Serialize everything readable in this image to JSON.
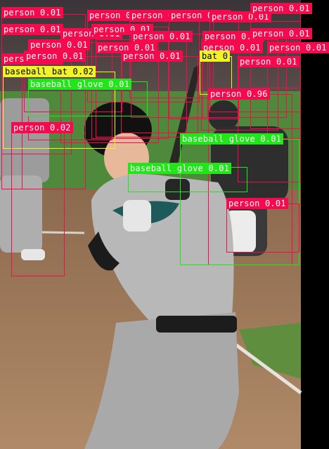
{
  "colors": {
    "person": "#f50a4d",
    "baseball_bat": "#f2f22a",
    "baseball_glove": "#23e61a",
    "background_box": "#000000"
  },
  "detections": [
    {
      "label": "person 0.01",
      "class": "person"
    },
    {
      "label": "person 0.01",
      "class": "person"
    },
    {
      "label": "person 0.01",
      "class": "person"
    },
    {
      "label": "person 0.01",
      "class": "person"
    },
    {
      "label": "person 0.01",
      "class": "person"
    },
    {
      "label": "person 0.01",
      "class": "person"
    },
    {
      "label": "person 0.01",
      "class": "person"
    },
    {
      "label": "person 0.01",
      "class": "person"
    },
    {
      "label": "person 0.01",
      "class": "person"
    },
    {
      "label": "person 0.01",
      "class": "person"
    },
    {
      "label": "person 0.01",
      "class": "person"
    },
    {
      "label": "person 0.01",
      "class": "person"
    },
    {
      "label": "person 0.01",
      "class": "person"
    },
    {
      "label": "person 0.01",
      "class": "person"
    },
    {
      "label": "person 0.01",
      "class": "person"
    },
    {
      "label": "person 0.01",
      "class": "person"
    },
    {
      "label": "person 0.01",
      "class": "person"
    },
    {
      "label": "person 0.01",
      "class": "person"
    },
    {
      "label": "person 0.01",
      "class": "person"
    },
    {
      "label": "person 0.01",
      "class": "person"
    },
    {
      "label": "bat 0",
      "class": "baseball_bat"
    },
    {
      "label": "baseball bat 0.02",
      "class": "baseball_bat"
    },
    {
      "label": "baseball glove 0.01",
      "class": "baseball_glove"
    },
    {
      "label": "person 0.96",
      "class": "person"
    },
    {
      "label": "person 0.02",
      "class": "person"
    },
    {
      "label": "baseball glove 0.01",
      "class": "baseball_glove"
    },
    {
      "label": "baseball glove 0.01",
      "class": "baseball_glove"
    },
    {
      "label": "person 0.01",
      "class": "person"
    }
  ]
}
